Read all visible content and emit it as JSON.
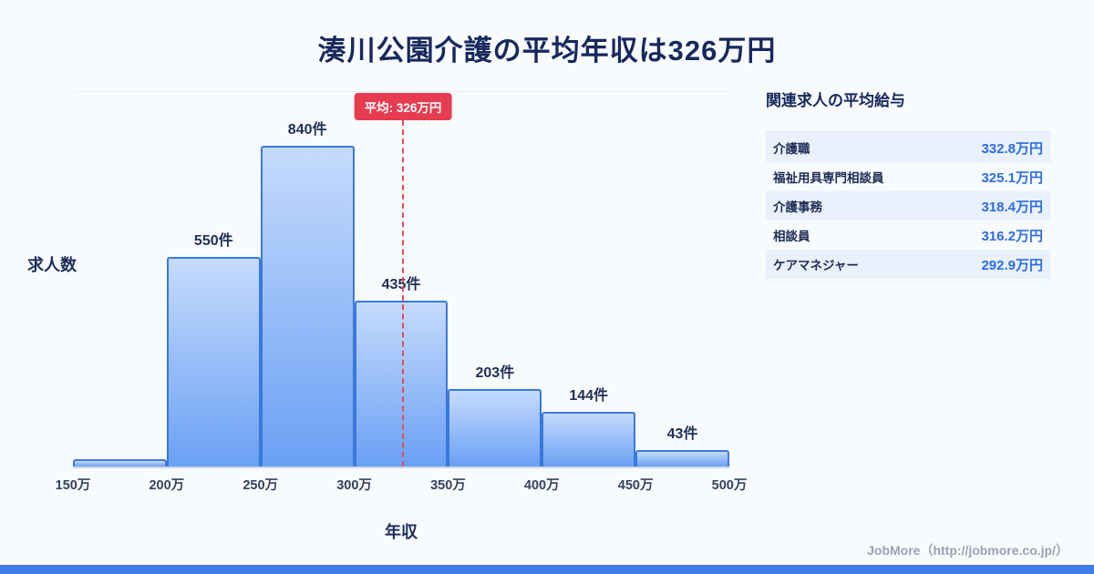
{
  "title": "湊川公園介護の平均年収は326万円",
  "chart_data": {
    "type": "bar",
    "title": "湊川公園介護の平均年収は326万円",
    "xlabel": "年収",
    "ylabel": "求人数",
    "bin_edges_labels": [
      "150万",
      "200万",
      "250万",
      "300万",
      "350万",
      "400万",
      "450万",
      "500万"
    ],
    "values": [
      19,
      550,
      840,
      435,
      203,
      144,
      43
    ],
    "bar_labels": [
      "",
      "550件",
      "840件",
      "435件",
      "203件",
      "144件",
      "43件"
    ],
    "ylim": [
      0,
      980
    ],
    "grid": "off",
    "average": {
      "value": 326,
      "label": "平均: 326万円",
      "x_range": [
        150,
        500
      ]
    },
    "colors": {
      "bar_top": "#c5dbfc",
      "bar_bottom": "#6aa0f4",
      "bar_border": "#3a79dc",
      "avg_line": "#e84a55",
      "avg_badge_bg": "#e63c4f"
    }
  },
  "side_panel": {
    "heading": "関連求人の平均給与",
    "rows": [
      {
        "name": "介護職",
        "value": "332.8万円"
      },
      {
        "name": "福祉用具専門相談員",
        "value": "325.1万円"
      },
      {
        "name": "介護事務",
        "value": "318.4万円"
      },
      {
        "name": "相談員",
        "value": "316.2万円"
      },
      {
        "name": "ケアマネジャー",
        "value": "292.9万円"
      }
    ]
  },
  "footer": {
    "credit": "JobMore（http://jobmore.co.jp/）"
  },
  "colors": {
    "background": "#f8fbfe",
    "accent_strip": "#3f7ee9",
    "title_text": "#17285d",
    "value_text": "#2d6ce4"
  }
}
